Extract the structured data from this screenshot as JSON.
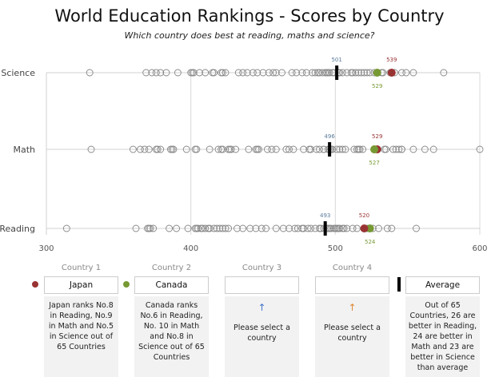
{
  "chart_data": {
    "type": "scatter",
    "title": "World Education Rankings - Scores by Country",
    "subtitle": "Which country does best at reading, maths and science?",
    "categories": [
      "Science",
      "Math",
      "Reading"
    ],
    "xlim": [
      300,
      600
    ],
    "xticks": [
      "300",
      "400",
      "500",
      "600"
    ],
    "grid": true,
    "series": [
      {
        "name": "Science",
        "values": [
          330,
          369,
          373,
          376,
          379,
          383,
          391,
          400,
          401,
          402,
          406,
          410,
          415,
          416,
          421,
          422,
          424,
          433,
          436,
          439,
          443,
          446,
          450,
          454,
          457,
          459,
          463,
          470,
          473,
          477,
          480,
          484,
          486,
          488,
          489,
          491,
          493,
          494,
          495,
          496,
          498,
          499,
          502,
          503,
          505,
          508,
          511,
          512,
          514,
          516,
          518,
          520,
          522,
          524,
          527,
          532,
          533,
          538,
          541,
          546,
          549,
          554,
          575
        ],
        "average": 501,
        "japan": 539,
        "canada": 529
      },
      {
        "name": "Math",
        "values": [
          331,
          360,
          365,
          368,
          371,
          376,
          377,
          379,
          386,
          387,
          388,
          397,
          403,
          404,
          413,
          419,
          421,
          422,
          426,
          427,
          428,
          431,
          440,
          445,
          446,
          447,
          453,
          456,
          459,
          466,
          468,
          471,
          478,
          482,
          483,
          487,
          489,
          492,
          492,
          495,
          496,
          497,
          498,
          501,
          503,
          505,
          507,
          513,
          515,
          516,
          517,
          519,
          534,
          535,
          540,
          542,
          544,
          546,
          546,
          554,
          562,
          568,
          600
        ],
        "average": 496,
        "japan": 529,
        "canada": 527
      },
      {
        "name": "Reading",
        "values": [
          314,
          362,
          370,
          371,
          372,
          374,
          385,
          390,
          398,
          403,
          404,
          405,
          407,
          408,
          410,
          412,
          413,
          416,
          418,
          420,
          422,
          424,
          426,
          432,
          436,
          441,
          445,
          449,
          452,
          459,
          464,
          468,
          472,
          474,
          477,
          478,
          481,
          483,
          486,
          489,
          490,
          492,
          494,
          495,
          496,
          497,
          499,
          500,
          501,
          502,
          503,
          505,
          506,
          508,
          512,
          515,
          521,
          522,
          526,
          530,
          536,
          539,
          556
        ],
        "average": 493,
        "japan": 520,
        "canada": 524
      }
    ],
    "labels": {
      "science_avg": "501",
      "science_japan": "539",
      "science_canada": "529",
      "math_avg": "496",
      "math_japan": "529",
      "math_canada": "527",
      "reading_avg": "493",
      "reading_japan": "520",
      "reading_canada": "524"
    }
  },
  "colors": {
    "japan": "#993333",
    "canada": "#779933",
    "country3_arrow": "#4477cc",
    "country4_arrow": "#dd8833",
    "avg_label": "#5a7a9a"
  },
  "panel": {
    "country1": {
      "label": "Country 1",
      "value": "Japan",
      "desc": "Japan ranks No.8 in Reading, No.9 in Math and No.5 in Science out of 65 Countries"
    },
    "country2": {
      "label": "Country 2",
      "value": "Canada",
      "desc": "Canada ranks No.6 in Reading, No. 10 in Math and No.8 in Science out of 65 Countries"
    },
    "country3": {
      "label": "Country 3",
      "value": "",
      "arrow": "↑",
      "desc": "Please select a country"
    },
    "country4": {
      "label": "Country 4",
      "value": "",
      "arrow": "↑",
      "desc": "Please select a country"
    },
    "average": {
      "value": "Average",
      "desc": "Out of 65 Countries, 26 are better in Reading, 24 are better in Math and 23 are better in Science than average"
    }
  }
}
